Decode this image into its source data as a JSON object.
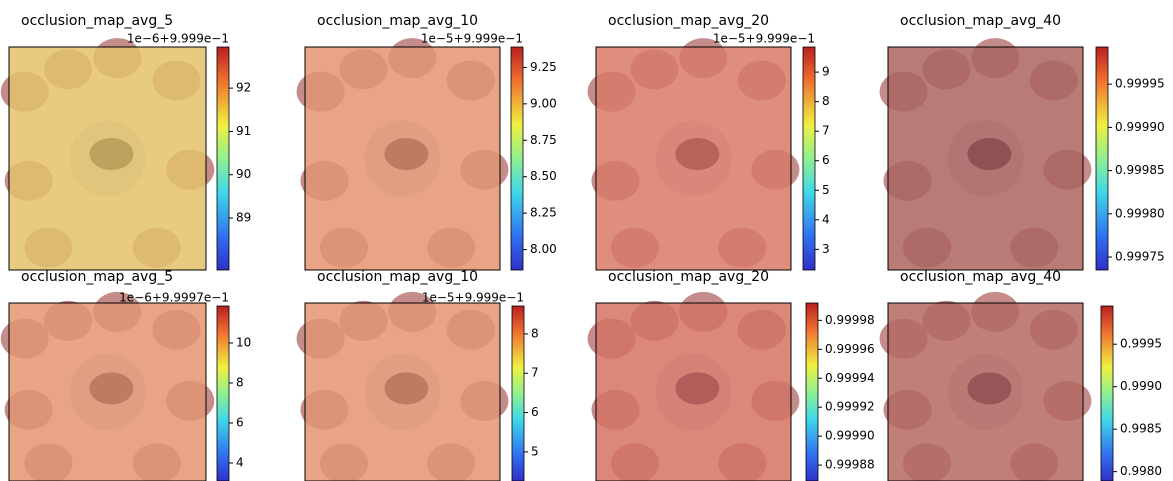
{
  "chart_data": [
    {
      "type": "heatmap",
      "title": "occlusion_map_avg_5",
      "offset_label": "1e−6+9.999e−1",
      "color": "#f1e06a",
      "ylim": [
        87.8,
        92.95
      ],
      "yticks": [
        89,
        90,
        91,
        92
      ]
    },
    {
      "type": "heatmap",
      "title": "occlusion_map_avg_10",
      "offset_label": "1e−5+9.999e−1",
      "color": "#f0a274",
      "ylim": [
        7.86,
        9.39
      ],
      "yticks": [
        {
          "value": 8,
          "label": "8.00"
        },
        8.25,
        {
          "value": 8.5,
          "label": "8.50"
        },
        8.75,
        {
          "value": 9,
          "label": "9.00"
        },
        9.25
      ]
    },
    {
      "type": "heatmap",
      "title": "occlusion_map_avg_20",
      "offset_label": "1e−5+9.999e−1",
      "color": "#e27c68",
      "ylim": [
        2.3,
        9.85
      ],
      "yticks": [
        4,
        5,
        6,
        7,
        8,
        9,
        3
      ]
    },
    {
      "type": "heatmap",
      "title": "occlusion_map_avg_40",
      "offset_label": null,
      "color": "#a45f5c",
      "ylim": [
        0.999735,
        0.999993
      ],
      "yticks": [
        0.99975,
        {
          "value": 0.9998,
          "label": "0.99980"
        },
        0.99985,
        {
          "value": 0.9999,
          "label": "0.99990"
        },
        0.99995
      ]
    },
    {
      "type": "heatmap",
      "title": "occlusion_map_avg_5",
      "offset_label": "1e−6+9.9997e−1",
      "color": "#f0a274",
      "ylim": [
        3.1,
        11.85
      ],
      "yticks": [
        4,
        6,
        8,
        10
      ]
    },
    {
      "type": "heatmap",
      "title": "occlusion_map_avg_10",
      "offset_label": "1e−5+9.999e−1",
      "color": "#f0a274",
      "ylim": [
        4.26,
        8.71
      ],
      "yticks": [
        5,
        6,
        7,
        8
      ]
    },
    {
      "type": "heatmap",
      "title": "occlusion_map_avg_20",
      "offset_label": null,
      "color": "#dc7262",
      "ylim": [
        0.999869,
        0.999992
      ],
      "yticks": [
        0.99988,
        {
          "value": 0.9999,
          "label": "0.99990"
        },
        0.99992,
        0.99994,
        0.99996,
        0.99998
      ]
    },
    {
      "type": "heatmap",
      "title": "occlusion_map_avg_40",
      "offset_label": null,
      "color": "#b0655f",
      "ylim": [
        0.99789,
        0.99995
      ],
      "yticks": [
        {
          "value": 0.998,
          "label": "0.9980"
        },
        0.9985,
        {
          "value": 0.999,
          "label": "0.9990"
        },
        0.9995
      ]
    }
  ]
}
